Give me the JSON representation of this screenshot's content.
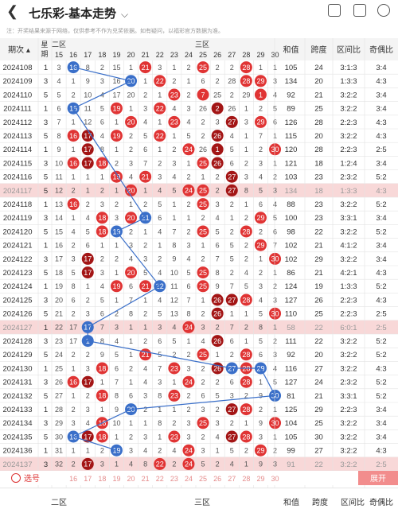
{
  "app": {
    "title": "七乐彩-基本走势",
    "back_icon": "chevron-left-icon",
    "actions": [
      "phone-icon",
      "share-icon",
      "settings-icon"
    ],
    "disclaimer": "注：开奖结果来源于网络，仅供参考不作为兑奖依据。如有疑问，以福彩官方数据为准。"
  },
  "colors": {
    "red": "#e03434",
    "darkred": "#a31515",
    "blue": "#3a6fc9",
    "highlight": "#f8d8d8",
    "accent": "#d33"
  },
  "header": {
    "period_label": "期次",
    "col_star": "星期",
    "zone2": "二区",
    "zone3": "三区",
    "numbers": [
      "15",
      "16",
      "17",
      "18",
      "19",
      "20",
      "21",
      "22",
      "23",
      "24",
      "25",
      "26",
      "27",
      "28",
      "29",
      "30"
    ],
    "stats": [
      "和值",
      "跨度",
      "区间比",
      "奇偶比"
    ]
  },
  "rows": [
    {
      "period": "2024108",
      "s": "1",
      "hl": false,
      "cells": [
        "3",
        "16",
        "8",
        "2",
        "15",
        "1",
        "21",
        "3",
        "1",
        "2",
        "25",
        "2",
        "2",
        "28",
        "1",
        "1"
      ],
      "red": [
        16,
        21,
        25,
        28
      ],
      "blue": [
        16
      ],
      "stats": [
        "105",
        "24",
        "3:1:3",
        "3:4"
      ]
    },
    {
      "period": "2024109",
      "s": "3",
      "hl": false,
      "cells": [
        "4",
        "1",
        "9",
        "3",
        "16",
        "20",
        "1",
        "22",
        "2",
        "1",
        "6",
        "2",
        "28",
        "28",
        "29",
        "3"
      ],
      "red": [
        20,
        22,
        28,
        29
      ],
      "blue": [
        20
      ],
      "stats": [
        "134",
        "20",
        "1:3:3",
        "4:3"
      ]
    },
    {
      "period": "2024110",
      "s": "5",
      "hl": false,
      "cells": [
        "5",
        "2",
        "10",
        "4",
        "17",
        "20",
        "2",
        "1",
        "23",
        "2",
        "7",
        "25",
        "2",
        "29",
        "1",
        "4"
      ],
      "red": [
        23,
        25,
        29
      ],
      "blue": [],
      "stats": [
        "92",
        "21",
        "3:2:2",
        "3:4"
      ]
    },
    {
      "period": "2024111",
      "s": "1",
      "hl": false,
      "cells": [
        "6",
        "16",
        "11",
        "5",
        "19",
        "1",
        "3",
        "22",
        "4",
        "3",
        "26",
        "2",
        "26",
        "1",
        "2",
        "5"
      ],
      "red": [
        16,
        19,
        22,
        26
      ],
      "blue": [
        16
      ],
      "stats": [
        "89",
        "25",
        "3:2:2",
        "3:4"
      ]
    },
    {
      "period": "2024112",
      "s": "3",
      "hl": false,
      "cells": [
        "7",
        "1",
        "12",
        "6",
        "1",
        "20",
        "4",
        "1",
        "23",
        "4",
        "2",
        "3",
        "27",
        "3",
        "29",
        "6"
      ],
      "red": [
        20,
        23,
        27,
        29
      ],
      "blue": [],
      "stats": [
        "126",
        "28",
        "2:2:3",
        "4:3"
      ]
    },
    {
      "period": "2024113",
      "s": "5",
      "hl": false,
      "cells": [
        "8",
        "16",
        "17",
        "4",
        "19",
        "2",
        "5",
        "22",
        "1",
        "5",
        "2",
        "26",
        "4",
        "1",
        "7",
        "1"
      ],
      "red": [
        16,
        17,
        19,
        22,
        26
      ],
      "blue": [],
      "stats": [
        "115",
        "20",
        "3:2:2",
        "4:3"
      ]
    },
    {
      "period": "2024114",
      "s": "1",
      "hl": false,
      "cells": [
        "9",
        "1",
        "17",
        "8",
        "1",
        "2",
        "6",
        "1",
        "2",
        "24",
        "26",
        "1",
        "5",
        "1",
        "2",
        "30"
      ],
      "red": [
        17,
        24,
        26,
        30
      ],
      "blue": [],
      "stats": [
        "120",
        "28",
        "2:2:3",
        "2:5"
      ]
    },
    {
      "period": "2024115",
      "s": "3",
      "hl": false,
      "cells": [
        "10",
        "16",
        "17",
        "18",
        "2",
        "3",
        "7",
        "2",
        "3",
        "1",
        "25",
        "26",
        "6",
        "2",
        "3",
        "1"
      ],
      "red": [
        16,
        17,
        18,
        25,
        26
      ],
      "blue": [],
      "stats": [
        "121",
        "18",
        "1:2:4",
        "3:4"
      ]
    },
    {
      "period": "2024116",
      "s": "5",
      "hl": false,
      "cells": [
        "11",
        "1",
        "1",
        "1",
        "19",
        "4",
        "21",
        "3",
        "4",
        "2",
        "1",
        "2",
        "27",
        "3",
        "4",
        "2"
      ],
      "red": [
        19,
        21,
        27
      ],
      "blue": [],
      "stats": [
        "103",
        "23",
        "2:3:2",
        "5:2"
      ]
    },
    {
      "period": "2024117",
      "s": "5",
      "hl": true,
      "cells": [
        "12",
        "2",
        "1",
        "2",
        "1",
        "20",
        "1",
        "4",
        "5",
        "24",
        "25",
        "2",
        "27",
        "8",
        "5",
        "3"
      ],
      "red": [
        20,
        24,
        25,
        27
      ],
      "blue": [],
      "stats": [
        "134",
        "18",
        "1:3:3",
        "4:3"
      ]
    },
    {
      "period": "2024118",
      "s": "1",
      "hl": false,
      "cells": [
        "13",
        "16",
        "2",
        "3",
        "2",
        "1",
        "2",
        "5",
        "1",
        "2",
        "25",
        "3",
        "2",
        "1",
        "6",
        "4"
      ],
      "red": [
        16,
        25
      ],
      "blue": [],
      "stats": [
        "88",
        "23",
        "3:2:2",
        "5:2"
      ]
    },
    {
      "period": "2024119",
      "s": "3",
      "hl": false,
      "cells": [
        "14",
        "1",
        "4",
        "18",
        "3",
        "20",
        "21",
        "6",
        "1",
        "1",
        "2",
        "4",
        "1",
        "2",
        "29",
        "5"
      ],
      "red": [
        18,
        20,
        21,
        29
      ],
      "blue": [
        21
      ],
      "stats": [
        "100",
        "23",
        "3:3:1",
        "3:4"
      ]
    },
    {
      "period": "2024120",
      "s": "5",
      "hl": false,
      "cells": [
        "15",
        "4",
        "5",
        "18",
        "19",
        "2",
        "1",
        "4",
        "7",
        "2",
        "25",
        "5",
        "2",
        "28",
        "2",
        "6"
      ],
      "red": [
        18,
        25,
        28
      ],
      "blue": [
        19
      ],
      "stats": [
        "98",
        "22",
        "3:2:2",
        "5:2"
      ]
    },
    {
      "period": "2024121",
      "s": "1",
      "hl": false,
      "cells": [
        "16",
        "2",
        "6",
        "1",
        "1",
        "3",
        "2",
        "1",
        "8",
        "3",
        "1",
        "6",
        "5",
        "2",
        "29",
        "7"
      ],
      "red": [
        29
      ],
      "blue": [],
      "stats": [
        "102",
        "21",
        "4:1:2",
        "3:4"
      ]
    },
    {
      "period": "2024122",
      "s": "3",
      "hl": false,
      "cells": [
        "17",
        "3",
        "17",
        "2",
        "2",
        "4",
        "3",
        "2",
        "9",
        "4",
        "2",
        "7",
        "5",
        "2",
        "1",
        "30"
      ],
      "red": [
        17,
        30
      ],
      "blue": [],
      "stats": [
        "102",
        "29",
        "3:2:2",
        "3:4"
      ]
    },
    {
      "period": "2024123",
      "s": "5",
      "hl": false,
      "cells": [
        "18",
        "5",
        "17",
        "3",
        "1",
        "20",
        "5",
        "4",
        "10",
        "5",
        "25",
        "8",
        "2",
        "4",
        "2",
        "1"
      ],
      "red": [
        17,
        20,
        25
      ],
      "blue": [],
      "stats": [
        "86",
        "21",
        "4:2:1",
        "4:3"
      ]
    },
    {
      "period": "2024124",
      "s": "1",
      "hl": false,
      "cells": [
        "19",
        "8",
        "1",
        "4",
        "19",
        "6",
        "21",
        "22",
        "11",
        "6",
        "25",
        "9",
        "7",
        "5",
        "3",
        "2"
      ],
      "red": [
        19,
        21,
        25
      ],
      "blue": [
        22
      ],
      "stats": [
        "124",
        "19",
        "1:3:3",
        "5:2"
      ]
    },
    {
      "period": "2024125",
      "s": "3",
      "hl": false,
      "cells": [
        "20",
        "6",
        "2",
        "5",
        "1",
        "7",
        "1",
        "4",
        "12",
        "7",
        "1",
        "26",
        "27",
        "28",
        "4",
        "3"
      ],
      "red": [
        26,
        27,
        28
      ],
      "blue": [],
      "stats": [
        "127",
        "26",
        "2:2:3",
        "4:3"
      ]
    },
    {
      "period": "2024126",
      "s": "5",
      "hl": false,
      "cells": [
        "21",
        "2",
        "3",
        "6",
        "2",
        "8",
        "2",
        "5",
        "13",
        "8",
        "2",
        "26",
        "1",
        "1",
        "5",
        "30"
      ],
      "red": [
        26,
        30
      ],
      "blue": [],
      "stats": [
        "110",
        "25",
        "2:2:3",
        "2:5"
      ]
    },
    {
      "period": "2024127",
      "s": "1",
      "hl": true,
      "cells": [
        "22",
        "17",
        "17",
        "7",
        "3",
        "1",
        "1",
        "3",
        "4",
        "24",
        "3",
        "2",
        "7",
        "2",
        "8",
        "1"
      ],
      "red": [
        24
      ],
      "blue": [
        17
      ],
      "stats": [
        "58",
        "22",
        "6:0:1",
        "2:5"
      ]
    },
    {
      "period": "2024128",
      "s": "3",
      "hl": false,
      "cells": [
        "23",
        "17",
        "1",
        "8",
        "4",
        "1",
        "2",
        "6",
        "5",
        "1",
        "4",
        "26",
        "6",
        "1",
        "5",
        "2"
      ],
      "red": [
        26
      ],
      "blue": [
        17
      ],
      "stats": [
        "111",
        "22",
        "3:2:2",
        "5:2"
      ]
    },
    {
      "period": "2024129",
      "s": "5",
      "hl": false,
      "cells": [
        "24",
        "2",
        "2",
        "9",
        "5",
        "1",
        "21",
        "5",
        "2",
        "2",
        "25",
        "1",
        "2",
        "28",
        "6",
        "3"
      ],
      "red": [
        21,
        25,
        28
      ],
      "blue": [],
      "stats": [
        "92",
        "20",
        "3:2:2",
        "5:2"
      ]
    },
    {
      "period": "2024130",
      "s": "1",
      "hl": false,
      "cells": [
        "25",
        "1",
        "3",
        "18",
        "6",
        "2",
        "4",
        "7",
        "23",
        "3",
        "2",
        "26",
        "27",
        "28",
        "29",
        "4"
      ],
      "red": [
        18,
        23,
        26,
        28
      ],
      "blue": [
        27,
        29
      ],
      "stats": [
        "116",
        "27",
        "3:2:2",
        "4:3"
      ]
    },
    {
      "period": "2024131",
      "s": "3",
      "hl": false,
      "cells": [
        "26",
        "16",
        "17",
        "1",
        "7",
        "1",
        "4",
        "3",
        "1",
        "24",
        "2",
        "2",
        "6",
        "28",
        "1",
        "5"
      ],
      "red": [
        16,
        17,
        24,
        28
      ],
      "blue": [],
      "stats": [
        "127",
        "24",
        "2:3:2",
        "5:2"
      ]
    },
    {
      "period": "2024132",
      "s": "5",
      "hl": false,
      "cells": [
        "27",
        "1",
        "2",
        "18",
        "8",
        "6",
        "3",
        "8",
        "23",
        "2",
        "6",
        "5",
        "3",
        "2",
        "9",
        "30"
      ],
      "red": [
        18,
        23
      ],
      "blue": [
        30
      ],
      "stats": [
        "81",
        "21",
        "3:3:1",
        "5:2"
      ]
    },
    {
      "period": "2024133",
      "s": "1",
      "hl": false,
      "cells": [
        "28",
        "2",
        "3",
        "1",
        "9",
        "20",
        "2",
        "1",
        "1",
        "2",
        "3",
        "2",
        "27",
        "28",
        "2",
        "1"
      ],
      "red": [
        27,
        28
      ],
      "blue": [
        20
      ],
      "stats": [
        "125",
        "29",
        "2:2:3",
        "3:4"
      ]
    },
    {
      "period": "2024134",
      "s": "3",
      "hl": false,
      "cells": [
        "29",
        "3",
        "4",
        "18",
        "10",
        "1",
        "1",
        "8",
        "2",
        "3",
        "25",
        "3",
        "2",
        "1",
        "9",
        "30"
      ],
      "red": [
        18,
        25,
        30
      ],
      "blue": [],
      "stats": [
        "104",
        "25",
        "3:2:2",
        "3:4"
      ]
    },
    {
      "period": "2024135",
      "s": "5",
      "hl": false,
      "cells": [
        "30",
        "16",
        "17",
        "18",
        "1",
        "2",
        "3",
        "1",
        "23",
        "3",
        "2",
        "4",
        "27",
        "28",
        "3",
        "1"
      ],
      "red": [
        17,
        18,
        23,
        27,
        28
      ],
      "blue": [
        16
      ],
      "stats": [
        "105",
        "30",
        "3:2:2",
        "3:4"
      ]
    },
    {
      "period": "2024136",
      "s": "1",
      "hl": false,
      "cells": [
        "31",
        "1",
        "1",
        "2",
        "19",
        "3",
        "4",
        "2",
        "4",
        "24",
        "3",
        "1",
        "5",
        "2",
        "29",
        "2"
      ],
      "red": [
        24,
        29
      ],
      "blue": [
        19
      ],
      "stats": [
        "99",
        "27",
        "3:2:2",
        "4:3"
      ]
    },
    {
      "period": "2024137",
      "s": "3",
      "hl": true,
      "cells": [
        "32",
        "2",
        "17",
        "3",
        "1",
        "4",
        "8",
        "22",
        "2",
        "24",
        "5",
        "2",
        "4",
        "1",
        "9",
        "3"
      ],
      "red": [
        17,
        22,
        24
      ],
      "blue": [],
      "stats": [
        "91",
        "22",
        "3:2:2",
        "2:5"
      ]
    }
  ],
  "select_label": "选号",
  "select_nums": [
    "16",
    "17",
    "18",
    "19",
    "20",
    "21",
    "22",
    "23",
    "24",
    "25",
    "26",
    "27",
    "28",
    "29",
    "30"
  ],
  "expand_label": "展开",
  "footer_zone2": "二区",
  "footer_zone3": "三区",
  "footer_stats": [
    "和值",
    "跨度",
    "区间比",
    "奇偶比"
  ]
}
